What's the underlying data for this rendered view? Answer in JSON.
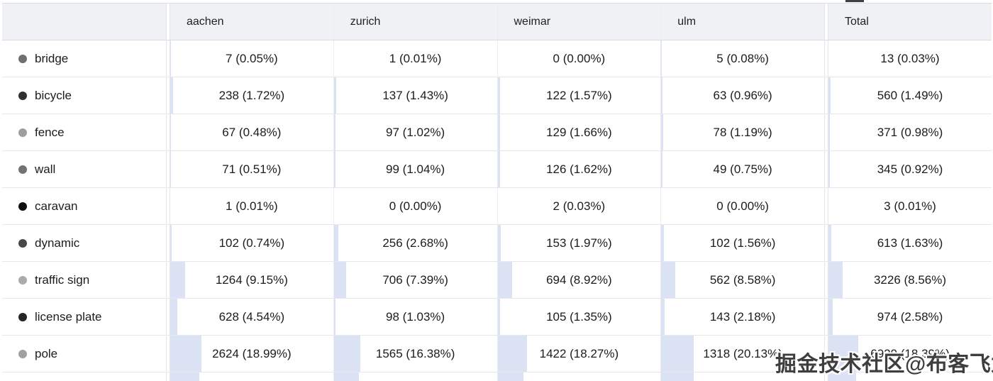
{
  "colors": {
    "bar_fill": "#dbe2f4",
    "header_bg": "#eff1f4",
    "row_border": "#e5e7ea",
    "text": "#1b1c1e"
  },
  "watermark": {
    "text": "掘金技术社区@布客飞龙"
  },
  "table": {
    "columns": [
      "",
      "aachen",
      "zurich",
      "weimar",
      "ulm",
      "Total"
    ],
    "rows": [
      {
        "label": "bridge",
        "dot_color": "#6f6f6f",
        "cells": [
          {
            "text": "7 (0.05%)",
            "bar": 0.05
          },
          {
            "text": "1 (0.01%)",
            "bar": 0.01
          },
          {
            "text": "0 (0.00%)",
            "bar": 0.0
          },
          {
            "text": "5 (0.08%)",
            "bar": 0.08
          },
          {
            "text": "13 (0.03%)",
            "bar": 0.03
          }
        ]
      },
      {
        "label": "bicycle",
        "dot_color": "#2f2f2f",
        "cells": [
          {
            "text": "238 (1.72%)",
            "bar": 1.72
          },
          {
            "text": "137 (1.43%)",
            "bar": 1.43
          },
          {
            "text": "122 (1.57%)",
            "bar": 1.57
          },
          {
            "text": "63 (0.96%)",
            "bar": 0.96
          },
          {
            "text": "560 (1.49%)",
            "bar": 1.49
          }
        ]
      },
      {
        "label": "fence",
        "dot_color": "#9e9e9e",
        "cells": [
          {
            "text": "67 (0.48%)",
            "bar": 0.48
          },
          {
            "text": "97 (1.02%)",
            "bar": 1.02
          },
          {
            "text": "129 (1.66%)",
            "bar": 1.66
          },
          {
            "text": "78 (1.19%)",
            "bar": 1.19
          },
          {
            "text": "371 (0.98%)",
            "bar": 0.98
          }
        ]
      },
      {
        "label": "wall",
        "dot_color": "#71717a",
        "cells": [
          {
            "text": "71 (0.51%)",
            "bar": 0.51
          },
          {
            "text": "99 (1.04%)",
            "bar": 1.04
          },
          {
            "text": "126 (1.62%)",
            "bar": 1.62
          },
          {
            "text": "49 (0.75%)",
            "bar": 0.75
          },
          {
            "text": "345 (0.92%)",
            "bar": 0.92
          }
        ]
      },
      {
        "label": "caravan",
        "dot_color": "#0f0f0f",
        "cells": [
          {
            "text": "1 (0.01%)",
            "bar": 0.01
          },
          {
            "text": "0 (0.00%)",
            "bar": 0.0
          },
          {
            "text": "2 (0.03%)",
            "bar": 0.03
          },
          {
            "text": "0 (0.00%)",
            "bar": 0.0
          },
          {
            "text": "3 (0.01%)",
            "bar": 0.01
          }
        ]
      },
      {
        "label": "dynamic",
        "dot_color": "#474747",
        "cells": [
          {
            "text": "102 (0.74%)",
            "bar": 0.74
          },
          {
            "text": "256 (2.68%)",
            "bar": 2.68
          },
          {
            "text": "153 (1.97%)",
            "bar": 1.97
          },
          {
            "text": "102 (1.56%)",
            "bar": 1.56
          },
          {
            "text": "613 (1.63%)",
            "bar": 1.63
          }
        ]
      },
      {
        "label": "traffic sign",
        "dot_color": "#ababab",
        "cells": [
          {
            "text": "1264 (9.15%)",
            "bar": 9.15
          },
          {
            "text": "706 (7.39%)",
            "bar": 7.39
          },
          {
            "text": "694 (8.92%)",
            "bar": 8.92
          },
          {
            "text": "562 (8.58%)",
            "bar": 8.58
          },
          {
            "text": "3226 (8.56%)",
            "bar": 8.56
          }
        ]
      },
      {
        "label": "license plate",
        "dot_color": "#262626",
        "cells": [
          {
            "text": "628 (4.54%)",
            "bar": 4.54
          },
          {
            "text": "98 (1.03%)",
            "bar": 1.03
          },
          {
            "text": "105 (1.35%)",
            "bar": 1.35
          },
          {
            "text": "143 (2.18%)",
            "bar": 2.18
          },
          {
            "text": "974 (2.58%)",
            "bar": 2.58
          }
        ]
      },
      {
        "label": "pole",
        "dot_color": "#a0a0a0",
        "cells": [
          {
            "text": "2624 (18.99%)",
            "bar": 18.99
          },
          {
            "text": "1565 (16.38%)",
            "bar": 16.38
          },
          {
            "text": "1422 (18.27%)",
            "bar": 18.27
          },
          {
            "text": "1318 (20.13%)",
            "bar": 20.13
          },
          {
            "text": "6929 (18.39%)",
            "bar": 18.39
          }
        ]
      }
    ],
    "partial_row_bars": [
      18.0,
      15.5,
      16.0,
      20.0,
      17.0
    ]
  },
  "chart_data": {
    "type": "table",
    "title": "",
    "categories": [
      "bridge",
      "bicycle",
      "fence",
      "wall",
      "caravan",
      "dynamic",
      "traffic sign",
      "license plate",
      "pole"
    ],
    "series": [
      {
        "name": "aachen",
        "values": [
          7,
          238,
          67,
          71,
          1,
          102,
          1264,
          628,
          2624
        ],
        "percents": [
          0.05,
          1.72,
          0.48,
          0.51,
          0.01,
          0.74,
          9.15,
          4.54,
          18.99
        ]
      },
      {
        "name": "zurich",
        "values": [
          1,
          137,
          97,
          99,
          0,
          256,
          706,
          98,
          1565
        ],
        "percents": [
          0.01,
          1.43,
          1.02,
          1.04,
          0.0,
          2.68,
          7.39,
          1.03,
          16.38
        ]
      },
      {
        "name": "weimar",
        "values": [
          0,
          122,
          129,
          126,
          2,
          153,
          694,
          105,
          1422
        ],
        "percents": [
          0.0,
          1.57,
          1.66,
          1.62,
          0.03,
          1.97,
          8.92,
          1.35,
          18.27
        ]
      },
      {
        "name": "ulm",
        "values": [
          5,
          63,
          78,
          49,
          0,
          102,
          562,
          143,
          1318
        ],
        "percents": [
          0.08,
          0.96,
          1.19,
          0.75,
          0.0,
          1.56,
          8.58,
          2.18,
          20.13
        ]
      },
      {
        "name": "Total",
        "values": [
          13,
          560,
          371,
          345,
          3,
          613,
          3226,
          974,
          6929
        ],
        "percents": [
          0.03,
          1.49,
          0.98,
          0.92,
          0.01,
          1.63,
          8.56,
          2.58,
          18.39
        ]
      }
    ]
  }
}
